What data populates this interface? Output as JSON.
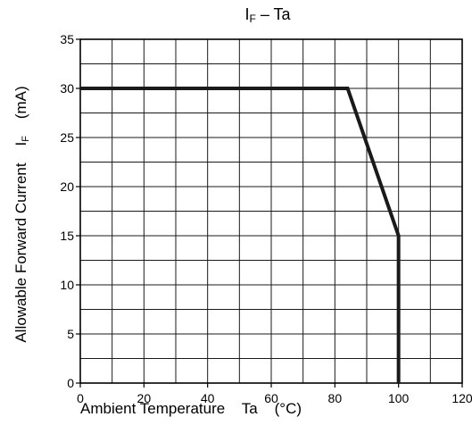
{
  "chart_data": {
    "type": "line",
    "title_main": "I",
    "title_sub": "F",
    "title_rest": " – Ta",
    "xlabel": "Ambient Temperature    Ta    (°C)",
    "ylabel_main": "Allowable Forward Current    I",
    "ylabel_sub": "F",
    "ylabel_rest": "    (mA)",
    "xlim": [
      0,
      120
    ],
    "ylim": [
      0,
      35
    ],
    "x_ticks": [
      0,
      20,
      40,
      60,
      80,
      100,
      120
    ],
    "y_ticks": [
      0,
      5,
      10,
      15,
      20,
      25,
      30,
      35
    ],
    "grid": true,
    "series": [
      {
        "x": [
          0,
          84,
          100,
          100
        ],
        "y": [
          30,
          30,
          15,
          0
        ]
      }
    ],
    "colors": {
      "line": "#1a1a1a",
      "grid": "#1a1a1a"
    }
  }
}
